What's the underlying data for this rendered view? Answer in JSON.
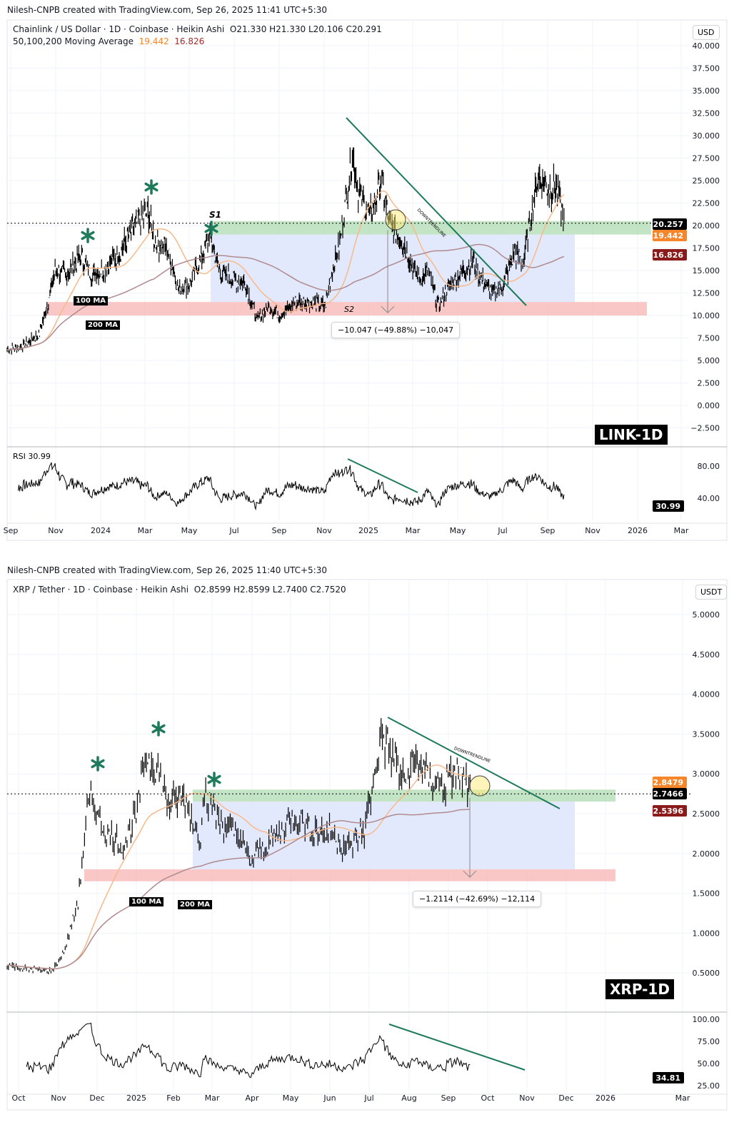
{
  "charts": [
    {
      "attribution": "Nilesh-CNPB created with TradingView.com, Sep 26, 2025 11:41 UTC+5:30",
      "symbol": "Chainlink / US Dollar · 1D · Coinbase · Heikin Ashi",
      "ohlc": "O21.330  H21.330  L20.106  C20.291",
      "ma_label": "50,100,200 Moving Average",
      "ma_values": [
        "19.442",
        "16.826"
      ],
      "currency": "USD",
      "tag": "LINK-1D",
      "ma_labels": [
        "100 MA",
        "200 MA"
      ],
      "support_labels": [
        "S1",
        "S2"
      ],
      "trendline_label": "DOWNTRENDLINE",
      "measure": "−10.047 (−49.88%) −10,047",
      "rsi_label": "RSI",
      "rsi_value": "30.99",
      "badges": [
        {
          "text": "20.257",
          "color": "#000000"
        },
        {
          "text": "19.442",
          "color": "#f7862a"
        },
        {
          "text": "16.826",
          "color": "#8b1a1a"
        }
      ]
    },
    {
      "attribution": "Nilesh-CNPB created with TradingView.com, Sep 26, 2025 11:40 UTC+5:30",
      "symbol": "XRP / Tether · 1D · Coinbase · Heikin Ashi",
      "ohlc": "O2.8599  H2.8599  L2.7400  C2.7520",
      "currency": "USDT",
      "tag": "XRP-1D",
      "ma_labels": [
        "100 MA",
        "200 MA"
      ],
      "trendline_label": "DOWNTRENDLINE",
      "measure": "−1.2114 (−42.69%) −12,114",
      "rsi_value": "34.81",
      "badges": [
        {
          "text": "2.8479",
          "color": "#f7862a"
        },
        {
          "text": "2.7466",
          "color": "#000000"
        },
        {
          "text": "2.5396",
          "color": "#8b1a1a"
        }
      ]
    }
  ],
  "chart_data": [
    {
      "type": "candlestick",
      "title": "Chainlink / US Dollar · 1D · Coinbase · Heikin Ashi",
      "y_ticks": [
        "40.000",
        "37.500",
        "35.000",
        "32.500",
        "30.000",
        "27.500",
        "25.000",
        "22.500",
        "20.000",
        "17.500",
        "15.000",
        "12.500",
        "10.000",
        "7.500",
        "5.000",
        "2.500",
        "0.000",
        "−2.500"
      ],
      "rsi_ticks": [
        "80.00",
        "40.00"
      ],
      "x_ticks": [
        "Sep",
        "Nov",
        "2024",
        "Mar",
        "May",
        "Jul",
        "Sep",
        "Nov",
        "2025",
        "Mar",
        "May",
        "Jul",
        "Sep",
        "Nov",
        "2026",
        "Mar"
      ],
      "ylim": [
        -3,
        42
      ],
      "close_path": [
        [
          "2023-09-01",
          6.2
        ],
        [
          "2023-09-20",
          6.5
        ],
        [
          "2023-10-15",
          8
        ],
        [
          "2023-10-25",
          11
        ],
        [
          "2023-11-05",
          15
        ],
        [
          "2023-11-20",
          14.5
        ],
        [
          "2023-12-10",
          16.5
        ],
        [
          "2023-12-25",
          14.5
        ],
        [
          "2024-01-10",
          15
        ],
        [
          "2024-02-01",
          17
        ],
        [
          "2024-02-20",
          20
        ],
        [
          "2024-03-10",
          21.5
        ],
        [
          "2024-03-20",
          18
        ],
        [
          "2024-04-05",
          17.5
        ],
        [
          "2024-04-20",
          13
        ],
        [
          "2024-05-05",
          13.5
        ],
        [
          "2024-05-25",
          17
        ],
        [
          "2024-06-01",
          19
        ],
        [
          "2024-06-15",
          15
        ],
        [
          "2024-07-01",
          14
        ],
        [
          "2024-07-20",
          13.5
        ],
        [
          "2024-08-05",
          9.5
        ],
        [
          "2024-08-20",
          11
        ],
        [
          "2024-09-05",
          10
        ],
        [
          "2024-09-25",
          11.5
        ],
        [
          "2024-10-15",
          11.5
        ],
        [
          "2024-11-05",
          11
        ],
        [
          "2024-11-15",
          15
        ],
        [
          "2024-11-25",
          18
        ],
        [
          "2024-12-05",
          24
        ],
        [
          "2024-12-12",
          28
        ],
        [
          "2024-12-20",
          24
        ],
        [
          "2025-01-05",
          21
        ],
        [
          "2025-01-20",
          25
        ],
        [
          "2025-02-01",
          20
        ],
        [
          "2025-02-10",
          19
        ],
        [
          "2025-02-20",
          18
        ],
        [
          "2025-03-05",
          15
        ],
        [
          "2025-03-15",
          14
        ],
        [
          "2025-03-25",
          15
        ],
        [
          "2025-04-07",
          11
        ],
        [
          "2025-04-20",
          13
        ],
        [
          "2025-05-10",
          15
        ],
        [
          "2025-05-25",
          16
        ],
        [
          "2025-06-05",
          14
        ],
        [
          "2025-06-20",
          12.5
        ],
        [
          "2025-07-05",
          13.5
        ],
        [
          "2025-07-20",
          17
        ],
        [
          "2025-08-01",
          16
        ],
        [
          "2025-08-15",
          23
        ],
        [
          "2025-08-22",
          25.5
        ],
        [
          "2025-09-05",
          24
        ],
        [
          "2025-09-15",
          24.5
        ],
        [
          "2025-09-25",
          20.3
        ]
      ],
      "zones": [
        {
          "name": "resistance-zone",
          "from": 19,
          "to": 20.5,
          "color": "#a5d6a7"
        },
        {
          "name": "support-zone",
          "from": 10,
          "to": 11.5,
          "color": "#f7a9a9"
        }
      ],
      "moving_averages": [
        {
          "period": 50,
          "color": "#f7b98b"
        },
        {
          "period": 200,
          "color": "#b08a8e"
        }
      ]
    },
    {
      "type": "candlestick",
      "title": "XRP / Tether · 1D · Coinbase · Heikin Ashi",
      "y_ticks": [
        "5.0000",
        "4.5000",
        "4.0000",
        "3.5000",
        "3.0000",
        "2.5000",
        "2.0000",
        "1.5000",
        "1.0000",
        "0.5000"
      ],
      "rsi_ticks": [
        "100.00",
        "75.00",
        "50.00",
        "25.00"
      ],
      "x_ticks": [
        "Oct",
        "Nov",
        "Dec",
        "2025",
        "Feb",
        "Mar",
        "Apr",
        "May",
        "Jun",
        "Jul",
        "Aug",
        "Sep",
        "Oct",
        "Nov",
        "Dec",
        "2026",
        "Mar"
      ],
      "ylim": [
        0.3,
        5.3
      ],
      "close_path": [
        [
          "2024-10-01",
          0.6
        ],
        [
          "2024-10-15",
          0.55
        ],
        [
          "2024-11-05",
          0.52
        ],
        [
          "2024-11-15",
          0.8
        ],
        [
          "2024-11-25",
          1.4
        ],
        [
          "2024-12-02",
          2.5
        ],
        [
          "2024-12-05",
          2.7
        ],
        [
          "2024-12-15",
          2.3
        ],
        [
          "2024-12-30",
          2.1
        ],
        [
          "2025-01-10",
          2.5
        ],
        [
          "2025-01-16",
          3.2
        ],
        [
          "2025-01-25",
          3.1
        ],
        [
          "2025-02-03",
          2.6
        ],
        [
          "2025-02-15",
          2.7
        ],
        [
          "2025-02-28",
          2.2
        ],
        [
          "2025-03-02",
          2.8
        ],
        [
          "2025-03-15",
          2.4
        ],
        [
          "2025-03-30",
          2.2
        ],
        [
          "2025-04-07",
          1.9
        ],
        [
          "2025-04-20",
          2.1
        ],
        [
          "2025-05-12",
          2.5
        ],
        [
          "2025-05-25",
          2.3
        ],
        [
          "2025-06-10",
          2.25
        ],
        [
          "2025-06-22",
          2.05
        ],
        [
          "2025-07-05",
          2.3
        ],
        [
          "2025-07-12",
          2.9
        ],
        [
          "2025-07-18",
          3.5
        ],
        [
          "2025-07-28",
          3.2
        ],
        [
          "2025-08-05",
          2.9
        ],
        [
          "2025-08-15",
          3.2
        ],
        [
          "2025-08-25",
          2.9
        ],
        [
          "2025-09-05",
          2.85
        ],
        [
          "2025-09-15",
          3.05
        ],
        [
          "2025-09-25",
          2.75
        ]
      ],
      "zones": [
        {
          "name": "resistance-zone",
          "from": 2.65,
          "to": 2.8,
          "color": "#a5d6a7"
        },
        {
          "name": "support-zone",
          "from": 1.65,
          "to": 1.8,
          "color": "#f7a9a9"
        }
      ],
      "moving_averages": [
        {
          "period": 50,
          "color": "#f7b98b"
        },
        {
          "period": 200,
          "color": "#b08a8e"
        }
      ]
    }
  ]
}
